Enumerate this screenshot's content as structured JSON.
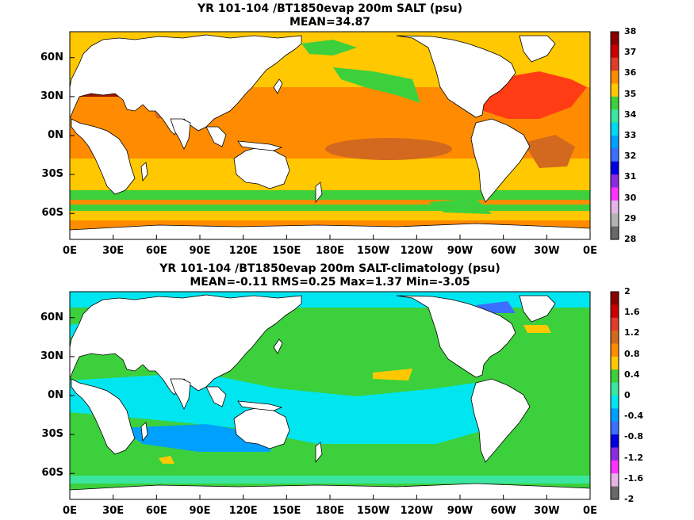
{
  "panels": [
    {
      "title1": "YR 101-104 /BT1850evap 200m SALT (psu)",
      "title2": "MEAN=34.87",
      "colorbar": {
        "labels": [
          "38",
          "37",
          "36",
          "35",
          "34",
          "33",
          "32",
          "31",
          "30",
          "29",
          "28"
        ],
        "colors": [
          "#8b0000",
          "#c80000",
          "#e03c28",
          "#ff8c00",
          "#ffc800",
          "#3cd03c",
          "#3ce6a0",
          "#00d8f0",
          "#00a0ff",
          "#3c6eff",
          "#0000e0",
          "#8a2be2",
          "#ff32ff",
          "#e6b4e6",
          "#b4b4b4",
          "#696969"
        ]
      }
    },
    {
      "title1": "YR 101-104 /BT1850evap 200m SALT-climatology (psu)",
      "title2": "MEAN=-0.11   RMS=0.25   Max=1.37   Min=-3.05",
      "colorbar": {
        "labels": [
          "2",
          "1.6",
          "1.2",
          "0.8",
          "0.4",
          "0",
          "-0.4",
          "-0.8",
          "-1.2",
          "-1.6",
          "-2"
        ],
        "colors": [
          "#8b0000",
          "#c80000",
          "#e03c28",
          "#d2691e",
          "#ff8c00",
          "#ffc800",
          "#3cd03c",
          "#3ce6a0",
          "#00e6f0",
          "#00a0ff",
          "#3c6eff",
          "#0000e0",
          "#8a2be2",
          "#ff32ff",
          "#e6b4e6",
          "#696969"
        ]
      }
    }
  ],
  "xticks": [
    "0E",
    "30E",
    "60E",
    "90E",
    "120E",
    "150E",
    "180E",
    "150W",
    "120W",
    "90W",
    "60W",
    "30W",
    "0E"
  ],
  "yticks": [
    "60N",
    "30N",
    "0N",
    "30S",
    "60S"
  ]
}
